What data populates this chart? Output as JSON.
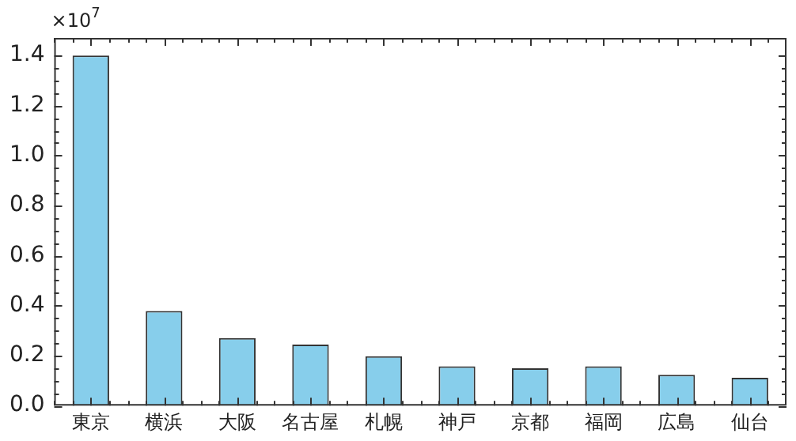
{
  "chart_data": {
    "type": "bar",
    "categories": [
      "東京",
      "横浜",
      "大阪",
      "名古屋",
      "札幌",
      "神戸",
      "京都",
      "福岡",
      "広島",
      "仙台"
    ],
    "values": [
      1.4,
      0.378,
      0.27,
      0.244,
      0.197,
      0.157,
      0.149,
      0.157,
      0.123,
      0.111
    ],
    "color": "#87ceeb",
    "ylim": [
      0,
      1.47
    ],
    "yticks": [
      {
        "value": 0,
        "label": "0.0"
      },
      0.2,
      0.4,
      0.6,
      0.8,
      {
        "value": 1,
        "label": "1.0"
      },
      1.2,
      1.4
    ],
    "annotations": [
      "×10$^{7}$"
    ],
    "grid": false,
    "legend": false
  }
}
